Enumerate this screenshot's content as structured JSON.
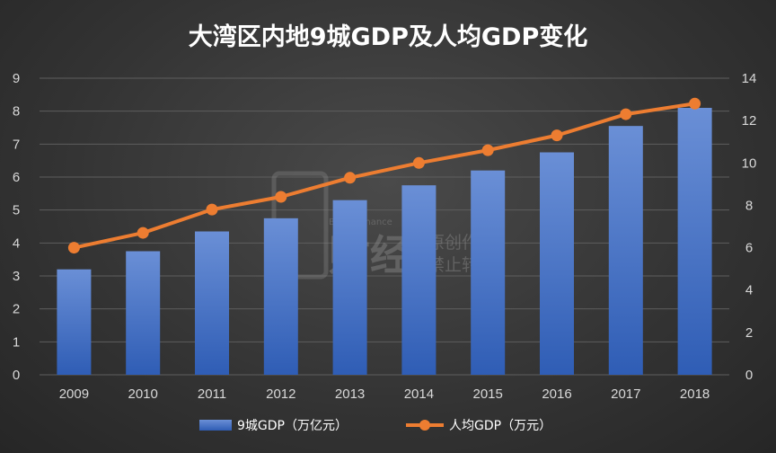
{
  "chart_data": {
    "type": "bar",
    "title": "大湾区内地9城GDP及人均GDP变化",
    "categories": [
      "2009",
      "2010",
      "2011",
      "2012",
      "2013",
      "2014",
      "2015",
      "2016",
      "2017",
      "2018"
    ],
    "series": [
      {
        "name": "9城GDP（万亿元）",
        "type": "bar",
        "axis": "left",
        "values": [
          3.2,
          3.75,
          4.35,
          4.75,
          5.3,
          5.75,
          6.2,
          6.75,
          7.55,
          8.1
        ],
        "color": "#4472c4"
      },
      {
        "name": "人均GDP（万元）",
        "type": "line",
        "axis": "right",
        "values": [
          6.0,
          6.7,
          7.8,
          8.4,
          9.3,
          10.0,
          10.6,
          11.3,
          12.3,
          12.8
        ],
        "color": "#ed7d31"
      }
    ],
    "ylim_left": [
      0,
      9
    ],
    "yticks_left": [
      "0",
      "1",
      "2",
      "3",
      "4",
      "5",
      "6",
      "7",
      "8",
      "9"
    ],
    "ylim_right": [
      0,
      14
    ],
    "yticks_right": [
      "0",
      "2",
      "4",
      "6",
      "8",
      "10",
      "12",
      "14"
    ],
    "grid": true,
    "legend_position": "bottom"
  },
  "watermark": {
    "brand": "财经",
    "sub": "Bread Finance",
    "line1": "原创作品",
    "line2": "禁止转载"
  }
}
